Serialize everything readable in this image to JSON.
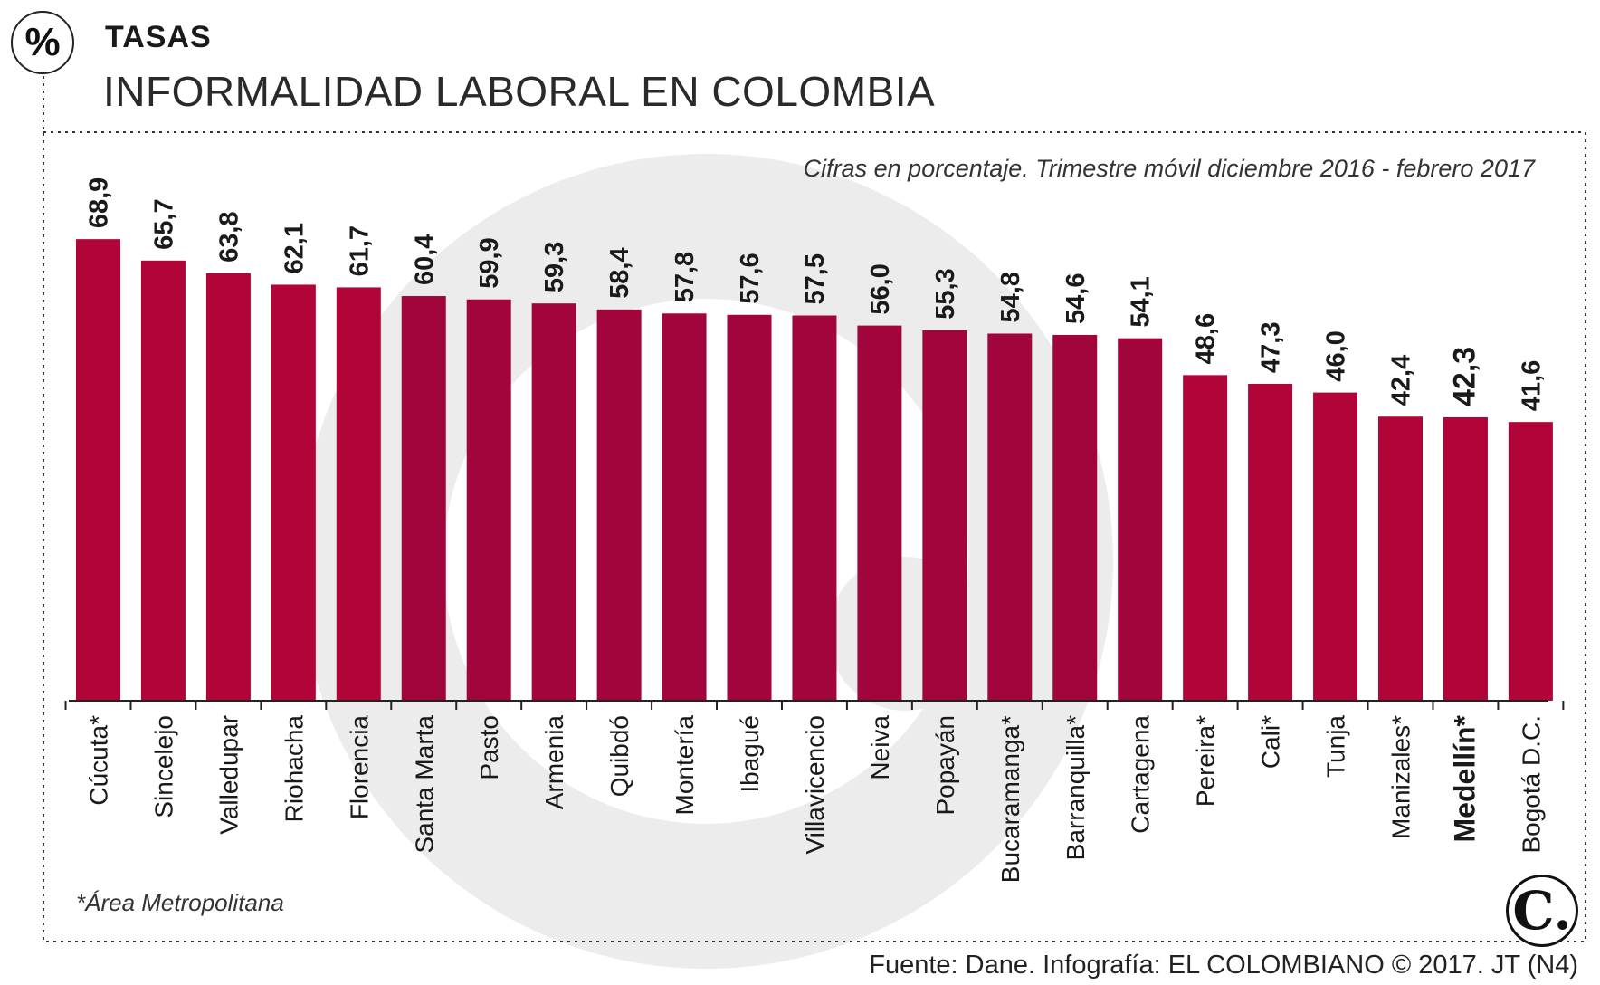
{
  "header": {
    "icon": "percent-icon",
    "icon_text": "%",
    "kicker": "TASAS",
    "title": "INFORMALIDAD LABORAL EN COLOMBIA"
  },
  "footer": {
    "note": "*Área Metropolitana",
    "source": "Fuente: Dane. Infografía: EL COLOMBIANO © 2017. JT (N4)",
    "logo": "el-colombiano-logo",
    "logo_text": "C."
  },
  "colors": {
    "bar": "#b1053a",
    "bar_dark": "#a2053b",
    "watermark": "#ececec",
    "text": "#1a1a1a"
  },
  "chart_data": {
    "type": "bar",
    "title": "INFORMALIDAD LABORAL EN COLOMBIA",
    "subtitle": "Cifras en porcentaje. Trimestre móvil diciembre 2016 - febrero 2017",
    "xlabel": "",
    "ylabel": "",
    "ylim": [
      0,
      75
    ],
    "grid": false,
    "legend": "none",
    "categories": [
      "Cúcuta*",
      "Sincelejo",
      "Valledupar",
      "Riohacha",
      "Florencia",
      "Santa Marta",
      "Pasto",
      "Armenia",
      "Quibdó",
      "Montería",
      "Ibagué",
      "Villavicencio",
      "Neiva",
      "Popayán",
      "Bucaramanga*",
      "Barranquilla*",
      "Cartagena",
      "Pereira*",
      "Cali*",
      "Tunja",
      "Manizales*",
      "Medellín*",
      "Bogotá D.C."
    ],
    "values": [
      68.9,
      65.7,
      63.8,
      62.1,
      61.7,
      60.4,
      59.9,
      59.3,
      58.4,
      57.8,
      57.6,
      57.5,
      56.0,
      55.3,
      54.8,
      54.6,
      54.1,
      48.6,
      47.3,
      46.0,
      42.4,
      42.3,
      41.6
    ],
    "value_labels": [
      "68,9",
      "65,7",
      "63,8",
      "62,1",
      "61,7",
      "60,4",
      "59,9",
      "59,3",
      "58,4",
      "57,8",
      "57,6",
      "57,5",
      "56,0",
      "55,3",
      "54,8",
      "54,6",
      "54,1",
      "48,6",
      "47,3",
      "46,0",
      "42,4",
      "42,3",
      "41,6"
    ],
    "highlight": "Medellín*"
  }
}
